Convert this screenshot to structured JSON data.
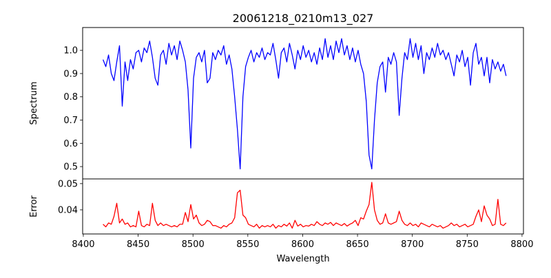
{
  "chart_data": [
    {
      "type": "line",
      "panel": "top",
      "title": "20061218_0210m13_027",
      "xlabel": "",
      "ylabel": "Spectrum",
      "xlim": [
        8399.4,
        8801.3
      ],
      "ylim": [
        0.447,
        1.098
      ],
      "yticks": [
        0.5,
        0.6,
        0.7,
        0.8,
        0.9,
        1.0
      ],
      "ytick_labels": [
        "0.5",
        "0.6",
        "0.7",
        "0.8",
        "0.9",
        "1.0"
      ],
      "grid": false,
      "color": "#0000ff",
      "x_start": 8418,
      "x_step": 2.5,
      "values": [
        0.96,
        0.93,
        0.98,
        0.9,
        0.87,
        0.95,
        1.02,
        0.76,
        0.95,
        0.87,
        0.96,
        0.92,
        0.99,
        1.0,
        0.95,
        1.01,
        0.99,
        1.04,
        0.97,
        0.88,
        0.85,
        0.98,
        1.0,
        0.94,
        1.03,
        0.98,
        1.02,
        0.96,
        1.04,
        1.0,
        0.95,
        0.83,
        0.58,
        0.88,
        0.97,
        0.99,
        0.95,
        1.0,
        0.86,
        0.88,
        0.99,
        0.96,
        1.0,
        0.98,
        1.02,
        0.94,
        0.98,
        0.92,
        0.8,
        0.66,
        0.49,
        0.8,
        0.93,
        0.97,
        1.0,
        0.95,
        0.99,
        0.97,
        1.01,
        0.96,
        0.99,
        0.98,
        1.03,
        0.96,
        0.88,
        0.99,
        1.01,
        0.95,
        1.03,
        0.98,
        0.92,
        1.0,
        0.96,
        1.02,
        0.97,
        1.0,
        0.95,
        0.99,
        0.94,
        1.01,
        0.96,
        1.05,
        0.97,
        1.02,
        0.96,
        1.04,
        0.99,
        1.05,
        0.98,
        1.02,
        0.96,
        1.01,
        0.95,
        1.0,
        0.94,
        0.9,
        0.78,
        0.55,
        0.49,
        0.7,
        0.86,
        0.93,
        0.95,
        0.82,
        0.97,
        0.94,
        0.99,
        0.95,
        0.72,
        0.88,
        0.99,
        0.96,
        1.05,
        0.97,
        1.03,
        0.96,
        1.02,
        0.9,
        0.99,
        0.96,
        1.01,
        0.97,
        1.03,
        0.98,
        1.0,
        0.96,
        0.99,
        0.94,
        0.89,
        0.98,
        0.95,
        1.0,
        0.93,
        0.97,
        0.85,
        0.99,
        1.03,
        0.94,
        0.97,
        0.89,
        0.97,
        0.86,
        0.96,
        0.92,
        0.95,
        0.91,
        0.94,
        0.89
      ]
    },
    {
      "type": "line",
      "panel": "bottom",
      "xlabel": "Wavelength",
      "ylabel": "Error",
      "xlim": [
        8399.4,
        8801.3
      ],
      "ylim": [
        0.0308,
        0.0518
      ],
      "yticks": [
        0.04,
        0.05
      ],
      "ytick_labels": [
        "0.04",
        "0.05"
      ],
      "xticks": [
        8400,
        8450,
        8500,
        8550,
        8600,
        8650,
        8700,
        8750,
        8800
      ],
      "xtick_labels": [
        "8400",
        "8450",
        "8500",
        "8550",
        "8600",
        "8650",
        "8700",
        "8750",
        "8800"
      ],
      "grid": false,
      "color": "#ff0000",
      "x_start": 8418,
      "x_step": 2.5,
      "values": [
        0.0345,
        0.0335,
        0.035,
        0.0345,
        0.0375,
        0.0425,
        0.035,
        0.0365,
        0.0345,
        0.035,
        0.0335,
        0.034,
        0.0335,
        0.0395,
        0.034,
        0.0335,
        0.0345,
        0.034,
        0.0425,
        0.036,
        0.034,
        0.035,
        0.034,
        0.0345,
        0.034,
        0.0335,
        0.034,
        0.0335,
        0.0345,
        0.0345,
        0.039,
        0.0355,
        0.042,
        0.0365,
        0.038,
        0.035,
        0.034,
        0.0345,
        0.036,
        0.0355,
        0.034,
        0.034,
        0.0335,
        0.033,
        0.034,
        0.0335,
        0.0345,
        0.035,
        0.037,
        0.0465,
        0.0475,
        0.038,
        0.037,
        0.0345,
        0.034,
        0.0335,
        0.0345,
        0.033,
        0.034,
        0.0335,
        0.034,
        0.0335,
        0.0345,
        0.033,
        0.034,
        0.0335,
        0.0345,
        0.0338,
        0.035,
        0.033,
        0.036,
        0.0338,
        0.0345,
        0.0335,
        0.034,
        0.0338,
        0.0345,
        0.034,
        0.0355,
        0.0345,
        0.034,
        0.035,
        0.0345,
        0.0352,
        0.034,
        0.035,
        0.0345,
        0.034,
        0.0348,
        0.0338,
        0.0345,
        0.035,
        0.036,
        0.034,
        0.037,
        0.0365,
        0.0395,
        0.042,
        0.0505,
        0.04,
        0.036,
        0.0345,
        0.035,
        0.0385,
        0.035,
        0.0345,
        0.035,
        0.0355,
        0.0395,
        0.036,
        0.0345,
        0.034,
        0.035,
        0.034,
        0.0345,
        0.0335,
        0.035,
        0.0345,
        0.034,
        0.0335,
        0.0345,
        0.034,
        0.0335,
        0.034,
        0.033,
        0.0335,
        0.034,
        0.035,
        0.034,
        0.0345,
        0.0335,
        0.034,
        0.0345,
        0.0335,
        0.034,
        0.0345,
        0.0375,
        0.04,
        0.0355,
        0.0415,
        0.038,
        0.0365,
        0.034,
        0.0345,
        0.044,
        0.0345,
        0.034,
        0.035
      ]
    }
  ]
}
